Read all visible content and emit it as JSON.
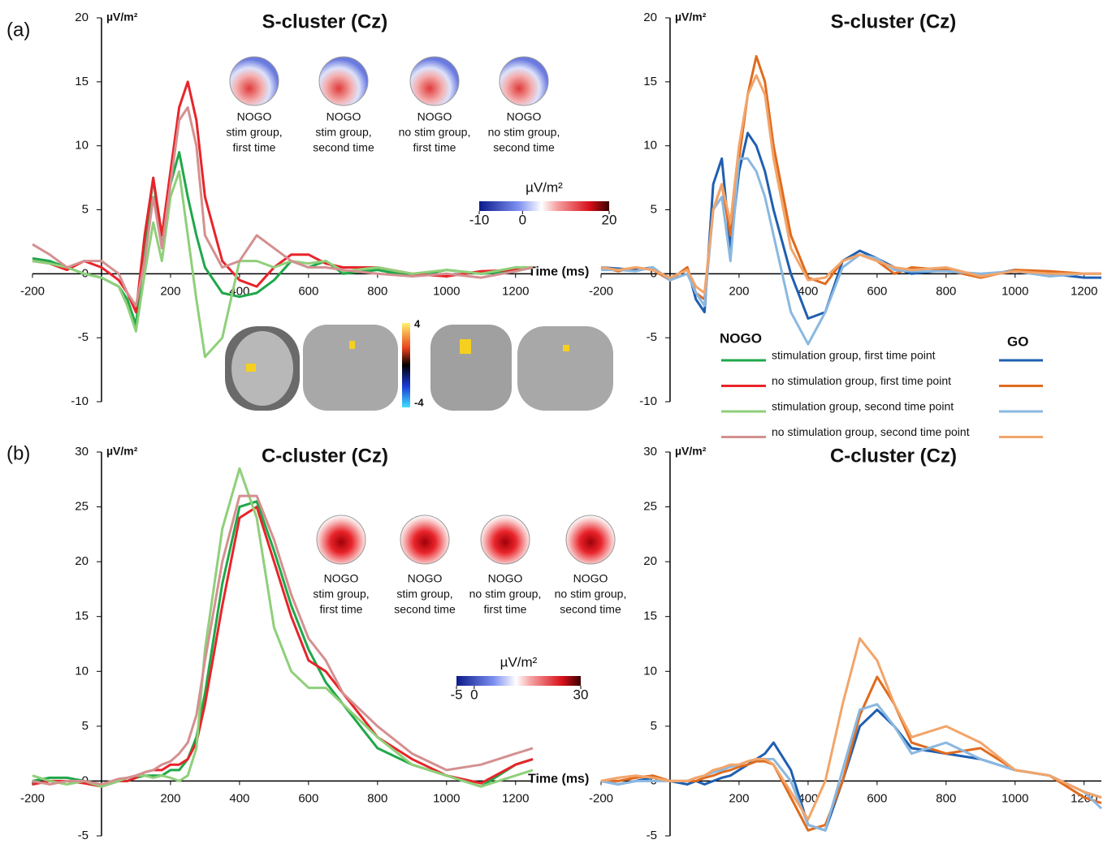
{
  "panels": [
    "(a)",
    "(b)"
  ],
  "legend": {
    "nogo_title": "NOGO",
    "go_title": "GO",
    "labels": [
      "stimulation group, first time point",
      "no stimulation group, first time point",
      "stimulation group, second time point",
      "no stimulation group, second time point"
    ]
  },
  "chart_data": [
    {
      "type": "line",
      "title": "S-cluster (Cz)",
      "y_label": "µV/m²",
      "x_label": "Time (ms)",
      "x": [
        -200,
        -150,
        -100,
        -50,
        0,
        50,
        75,
        100,
        125,
        150,
        175,
        200,
        225,
        250,
        275,
        300,
        350,
        400,
        450,
        500,
        550,
        600,
        650,
        700,
        800,
        900,
        1000,
        1100,
        1200,
        1250
      ],
      "xlim": [
        -200,
        1250
      ],
      "xticks": [
        -200,
        200,
        400,
        600,
        800,
        1000,
        1200
      ],
      "ylim": [
        -10,
        20
      ],
      "yticks": [
        -10,
        -5,
        0,
        5,
        10,
        15,
        20
      ],
      "series": [
        {
          "color": "#1fa84a",
          "values": [
            1.2,
            1,
            0.5,
            0,
            -0.3,
            -1,
            -2,
            -4,
            2,
            7.5,
            2,
            7,
            9.5,
            6,
            3,
            0.5,
            -1.5,
            -1.8,
            -1.5,
            -0.5,
            1,
            0.5,
            1,
            0,
            0.3,
            -0.2,
            0.3,
            0,
            0.2,
            0.5
          ]
        },
        {
          "color": "#e8242a",
          "values": [
            1,
            0.8,
            0.3,
            1,
            0.5,
            -0.5,
            -1.5,
            -3,
            3,
            7.5,
            3,
            8,
            13,
            15,
            12,
            6,
            1,
            -0.5,
            -1,
            0.5,
            1.5,
            1.5,
            0.8,
            0.5,
            0.5,
            0,
            -0.2,
            0.2,
            0.3,
            0.5
          ]
        },
        {
          "color": "#8fcf7a",
          "values": [
            1,
            0.8,
            0.5,
            0,
            -0.3,
            -1,
            -2.5,
            -4.5,
            0,
            4,
            1,
            6,
            8,
            3,
            -2,
            -6.5,
            -5,
            1,
            1,
            0.5,
            1,
            0.8,
            1,
            0.2,
            0.5,
            0,
            0.3,
            0,
            0.5,
            0.5
          ]
        },
        {
          "color": "#d49090",
          "values": [
            2.3,
            1.5,
            0.5,
            1,
            1,
            0,
            -1.5,
            -2.5,
            1,
            6,
            2,
            7,
            12,
            13,
            10,
            3,
            0.5,
            1,
            3,
            2,
            1,
            0.5,
            0.5,
            0.3,
            0,
            -0.2,
            0,
            -0.3,
            0.2,
            0.5
          ]
        }
      ],
      "topomaps": [
        [
          "NOGO",
          "stim group,",
          "first time"
        ],
        [
          "NOGO",
          "stim group,",
          "second time"
        ],
        [
          "NOGO",
          "no stim group,",
          "first time"
        ],
        [
          "NOGO",
          "no stim group,",
          "second time"
        ]
      ],
      "colorbar": {
        "label": "µV/m²",
        "lim": [
          -10,
          20
        ],
        "ticks": [
          -10,
          0,
          20
        ]
      },
      "brain_colorbar": {
        "ticks": [
          4,
          -4
        ]
      }
    },
    {
      "type": "line",
      "title": "S-cluster (Cz)",
      "y_label": "µV/m²",
      "x": [
        -200,
        -150,
        -100,
        -50,
        0,
        50,
        75,
        100,
        125,
        150,
        175,
        200,
        225,
        250,
        275,
        300,
        350,
        400,
        450,
        500,
        550,
        600,
        650,
        700,
        800,
        900,
        1000,
        1100,
        1200,
        1250
      ],
      "xlim": [
        -200,
        1250
      ],
      "xticks": [
        -200,
        200,
        400,
        600,
        800,
        1000,
        1200
      ],
      "ylim": [
        -10,
        20
      ],
      "yticks": [
        -10,
        -5,
        0,
        5,
        10,
        15,
        20
      ],
      "series": [
        {
          "color": "#1f5fb0",
          "values": [
            0.5,
            0.4,
            0.3,
            0.5,
            -0.5,
            0.5,
            -2,
            -3,
            7,
            9,
            2,
            8,
            11,
            10,
            8,
            5,
            0,
            -3.5,
            -3,
            1,
            1.8,
            1.2,
            0.5,
            0,
            0.3,
            -0.2,
            0.3,
            0,
            -0.3,
            -0.3
          ]
        },
        {
          "color": "#e06b1e",
          "values": [
            0.5,
            0.2,
            0.5,
            0.3,
            -0.5,
            0.5,
            -1.5,
            -2,
            5,
            7,
            3,
            9,
            14,
            17,
            15,
            10,
            3,
            -0.3,
            -0.8,
            1,
            1.5,
            1,
            0,
            0.5,
            0.3,
            -0.3,
            0.3,
            0.2,
            0,
            0
          ]
        },
        {
          "color": "#8ab8e0",
          "values": [
            0.3,
            0.3,
            0.2,
            0.5,
            -0.5,
            0,
            -1.5,
            -2.5,
            5,
            6,
            1,
            9,
            9,
            8,
            6,
            3,
            -3,
            -5.5,
            -3,
            0.5,
            1.5,
            1.2,
            0.3,
            0.2,
            0.2,
            0,
            0.2,
            -0.2,
            0,
            0
          ]
        },
        {
          "color": "#f2a56a",
          "values": [
            0.5,
            0.3,
            0.5,
            0.3,
            -0.3,
            0.3,
            -1,
            -1.5,
            5,
            7,
            4,
            10,
            14,
            15.5,
            14,
            9,
            2,
            -0.5,
            -0.3,
            1,
            1.5,
            1,
            0.5,
            0.3,
            0.5,
            -0.2,
            0.2,
            0,
            0,
            0
          ]
        }
      ]
    },
    {
      "type": "line",
      "title": "C-cluster (Cz)",
      "y_label": "µV/m²",
      "x_label": "Time (ms)",
      "x": [
        -200,
        -150,
        -100,
        -50,
        0,
        50,
        75,
        100,
        125,
        150,
        175,
        200,
        225,
        250,
        275,
        300,
        350,
        400,
        450,
        500,
        550,
        600,
        650,
        700,
        800,
        900,
        1000,
        1100,
        1200,
        1250
      ],
      "xlim": [
        -200,
        1250
      ],
      "xticks": [
        -200,
        200,
        400,
        600,
        800,
        1000,
        1200
      ],
      "ylim": [
        -5,
        30
      ],
      "yticks": [
        -5,
        0,
        5,
        10,
        15,
        20,
        25,
        30
      ],
      "series": [
        {
          "color": "#1fa84a",
          "values": [
            0,
            0.3,
            0.3,
            0,
            -0.3,
            0,
            0,
            0.3,
            0.5,
            0.5,
            0.5,
            1,
            1,
            2,
            4,
            8,
            18,
            25,
            25.5,
            21,
            16,
            12,
            9,
            7,
            3,
            1.5,
            0.5,
            -0.5,
            1.5,
            2
          ]
        },
        {
          "color": "#e8242a",
          "values": [
            -0.3,
            0,
            0,
            -0.2,
            -0.5,
            0,
            0,
            0.3,
            0.8,
            1,
            1,
            1.5,
            1.5,
            2,
            3.5,
            7,
            16,
            24,
            25,
            20,
            15,
            11,
            10,
            8,
            4,
            2,
            0.5,
            -0.2,
            1.5,
            2
          ]
        },
        {
          "color": "#8fcf7a",
          "values": [
            0.5,
            0,
            -0.3,
            0,
            -0.5,
            0,
            0.3,
            0.5,
            0.5,
            0.3,
            0.5,
            0.3,
            0,
            0.5,
            3,
            12,
            23,
            28.5,
            24,
            14,
            10,
            8.5,
            8.5,
            7,
            4,
            1.5,
            0.5,
            -0.5,
            0.5,
            1
          ]
        },
        {
          "color": "#d49090",
          "values": [
            0,
            -0.3,
            0,
            0,
            -0.3,
            0.2,
            0.3,
            0.5,
            0.8,
            1,
            1.5,
            1.8,
            2.5,
            3.5,
            6,
            11,
            20,
            26,
            26,
            22,
            17,
            13,
            11,
            8,
            5,
            2.5,
            1,
            1.5,
            2.5,
            3
          ]
        }
      ],
      "topomaps": [
        [
          "NOGO",
          "stim group,",
          "first time"
        ],
        [
          "NOGO",
          "stim group,",
          "second time"
        ],
        [
          "NOGO",
          "no stim group,",
          "first time"
        ],
        [
          "NOGO",
          "no stim group,",
          "second time"
        ]
      ],
      "colorbar": {
        "label": "µV/m²",
        "lim": [
          -5,
          30
        ],
        "ticks": [
          -5,
          0,
          30
        ]
      }
    },
    {
      "type": "line",
      "title": "C-cluster (Cz)",
      "y_label": "µV/m²",
      "x": [
        -200,
        -150,
        -100,
        -50,
        0,
        50,
        75,
        100,
        125,
        150,
        175,
        200,
        225,
        250,
        275,
        300,
        350,
        400,
        450,
        500,
        550,
        600,
        650,
        700,
        800,
        900,
        1000,
        1100,
        1200,
        1250
      ],
      "xlim": [
        -200,
        1250
      ],
      "xticks": [
        -200,
        200,
        400,
        600,
        800,
        1000,
        1200
      ],
      "ylim": [
        -5,
        30
      ],
      "yticks": [
        -5,
        0,
        5,
        10,
        15,
        20,
        25,
        30
      ],
      "series": [
        {
          "color": "#1f5fb0",
          "values": [
            0,
            -0.3,
            0,
            0.3,
            0,
            -0.3,
            0,
            -0.3,
            0,
            0.3,
            0.5,
            1,
            1.5,
            2,
            2.5,
            3.5,
            1,
            -4,
            -4.5,
            0,
            5,
            6.5,
            5,
            3,
            2.5,
            2,
            1,
            0.5,
            -1,
            -1.5
          ]
        },
        {
          "color": "#e06b1e",
          "values": [
            0,
            0,
            0.3,
            0.5,
            0,
            0,
            0,
            0.3,
            0.5,
            0.8,
            1,
            1.3,
            1.5,
            1.8,
            1.8,
            1.5,
            -1.5,
            -4.5,
            -4,
            0,
            6,
            9.5,
            7,
            3.5,
            2.5,
            3,
            1,
            0.5,
            -1.5,
            -2
          ]
        },
        {
          "color": "#8ab8e0",
          "values": [
            0,
            -0.3,
            0,
            0,
            0,
            0,
            0.3,
            0.5,
            0.8,
            1,
            1.3,
            1.5,
            1.8,
            2,
            2,
            2,
            0,
            -4,
            -4.5,
            1,
            6.5,
            7,
            5,
            2.5,
            3.5,
            2,
            1,
            0.5,
            -1,
            -2.5
          ]
        },
        {
          "color": "#f2a56a",
          "values": [
            0,
            0.3,
            0.5,
            0.3,
            0,
            0,
            0.3,
            0.5,
            1,
            1.2,
            1.5,
            1.5,
            1.8,
            2,
            2,
            1.5,
            -1,
            -3.5,
            0,
            7,
            13,
            11,
            7,
            4,
            5,
            3.5,
            1,
            0.5,
            -1,
            -1.5
          ]
        }
      ]
    }
  ]
}
